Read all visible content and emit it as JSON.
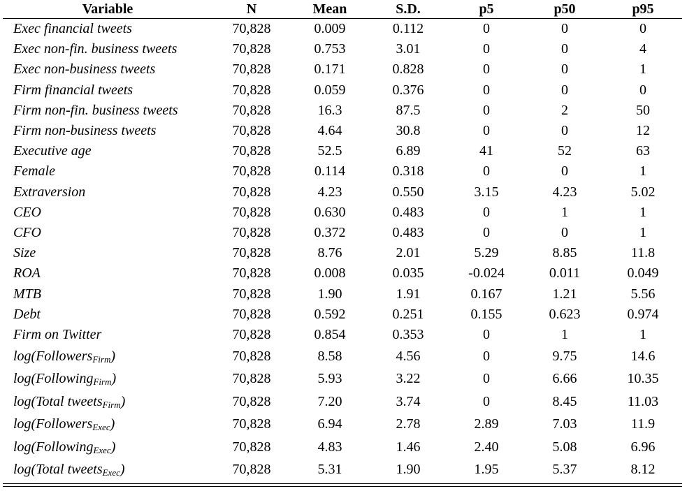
{
  "columns": [
    "Variable",
    "N",
    "Mean",
    "S.D.",
    "p5",
    "p50",
    "p95"
  ],
  "rows": [
    {
      "var": "Exec financial tweets",
      "n": "70,828",
      "mean": "0.009",
      "sd": "0.112",
      "p5": "0",
      "p50": "0",
      "p95": "0"
    },
    {
      "var": "Exec non-fin. business tweets",
      "n": "70,828",
      "mean": "0.753",
      "sd": "3.01",
      "p5": "0",
      "p50": "0",
      "p95": "4"
    },
    {
      "var": "Exec non-business tweets",
      "n": "70,828",
      "mean": "0.171",
      "sd": "0.828",
      "p5": "0",
      "p50": "0",
      "p95": "1"
    },
    {
      "var": "Firm financial tweets",
      "n": "70,828",
      "mean": "0.059",
      "sd": "0.376",
      "p5": "0",
      "p50": "0",
      "p95": "0"
    },
    {
      "var": "Firm non-fin. business tweets",
      "n": "70,828",
      "mean": "16.3",
      "sd": "87.5",
      "p5": "0",
      "p50": "2",
      "p95": "50"
    },
    {
      "var": "Firm non-business tweets",
      "n": "70,828",
      "mean": "4.64",
      "sd": "30.8",
      "p5": "0",
      "p50": "0",
      "p95": "12"
    },
    {
      "var": "Executive age",
      "n": "70,828",
      "mean": "52.5",
      "sd": "6.89",
      "p5": "41",
      "p50": "52",
      "p95": "63"
    },
    {
      "var": "Female",
      "n": "70,828",
      "mean": "0.114",
      "sd": "0.318",
      "p5": "0",
      "p50": "0",
      "p95": "1"
    },
    {
      "var": "Extraversion",
      "n": "70,828",
      "mean": "4.23",
      "sd": "0.550",
      "p5": "3.15",
      "p50": "4.23",
      "p95": "5.02"
    },
    {
      "var": "CEO",
      "n": "70,828",
      "mean": "0.630",
      "sd": "0.483",
      "p5": "0",
      "p50": "1",
      "p95": "1"
    },
    {
      "var": "CFO",
      "n": "70,828",
      "mean": "0.372",
      "sd": "0.483",
      "p5": "0",
      "p50": "0",
      "p95": "1"
    },
    {
      "var": "Size",
      "n": "70,828",
      "mean": "8.76",
      "sd": "2.01",
      "p5": "5.29",
      "p50": "8.85",
      "p95": "11.8"
    },
    {
      "var": "ROA",
      "n": "70,828",
      "mean": "0.008",
      "sd": "0.035",
      "p5": "-0.024",
      "p50": "0.011",
      "p95": "0.049"
    },
    {
      "var": "MTB",
      "n": "70,828",
      "mean": "1.90",
      "sd": "1.91",
      "p5": "0.167",
      "p50": "1.21",
      "p95": "5.56"
    },
    {
      "var": "Debt",
      "n": "70,828",
      "mean": "0.592",
      "sd": "0.251",
      "p5": "0.155",
      "p50": "0.623",
      "p95": "0.974"
    },
    {
      "var": "Firm on Twitter",
      "n": "70,828",
      "mean": "0.854",
      "sd": "0.353",
      "p5": "0",
      "p50": "1",
      "p95": "1"
    }
  ],
  "log_rows": [
    {
      "var": "log(Followers",
      "sub": "Firm",
      "close": ")",
      "n": "70,828",
      "mean": "8.58",
      "sd": "4.56",
      "p5": "0",
      "p50": "9.75",
      "p95": "14.6"
    },
    {
      "var": "log(Following",
      "sub": "Firm",
      "close": ")",
      "n": "70,828",
      "mean": "5.93",
      "sd": "3.22",
      "p5": "0",
      "p50": "6.66",
      "p95": "10.35"
    },
    {
      "var": "log(Total tweets",
      "sub": "Firm",
      "close": ")",
      "n": "70,828",
      "mean": "7.20",
      "sd": "3.74",
      "p5": "0",
      "p50": "8.45",
      "p95": "11.03"
    },
    {
      "var": "log(Followers",
      "sub": "Exec",
      "close": ")",
      "n": "70,828",
      "mean": "6.94",
      "sd": "2.78",
      "p5": "2.89",
      "p50": "7.03",
      "p95": "11.9"
    },
    {
      "var": "log(Following",
      "sub": "Exec",
      "close": ")",
      "n": "70,828",
      "mean": "4.83",
      "sd": "1.46",
      "p5": "2.40",
      "p50": "5.08",
      "p95": "6.96"
    },
    {
      "var": "log(Total tweets",
      "sub": "Exec",
      "close": ")",
      "n": "70,828",
      "mean": "5.31",
      "sd": "1.90",
      "p5": "1.95",
      "p50": "5.37",
      "p95": "8.12"
    }
  ]
}
